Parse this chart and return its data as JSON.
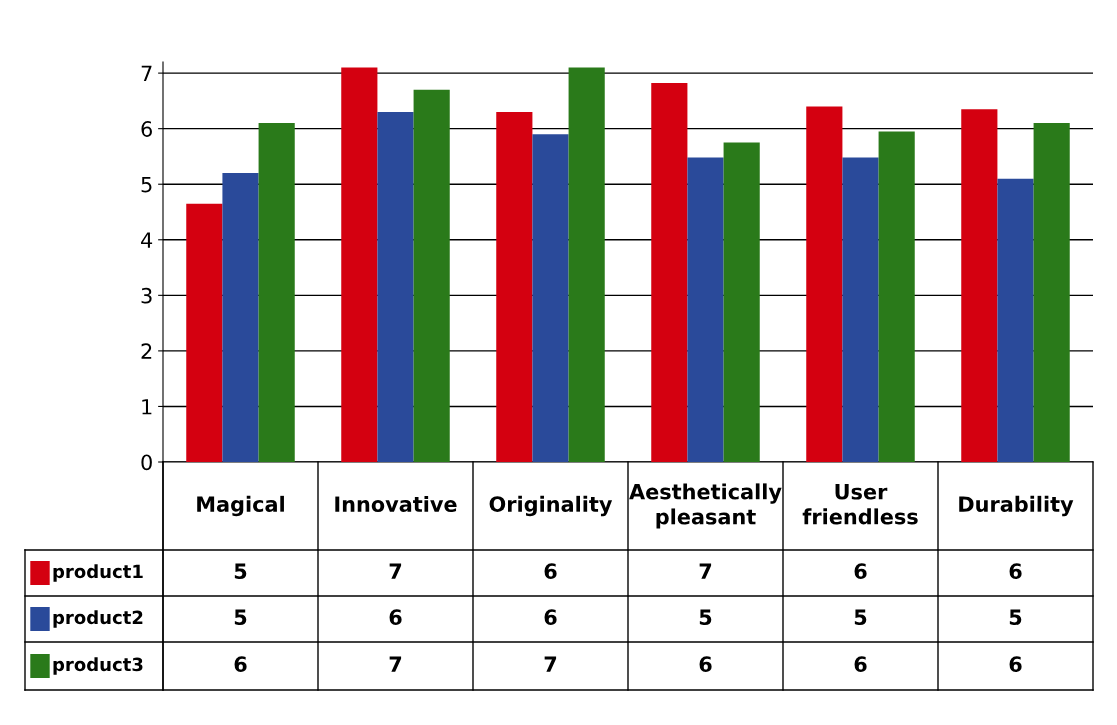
{
  "chart_data": {
    "type": "bar",
    "categories": [
      "Magical",
      "Innovative",
      "Originality",
      "Aesthetically\npleasant",
      "User\nfriendless",
      "Durability"
    ],
    "series": [
      {
        "name": "product1",
        "color": "#d40010",
        "values": [
          4.65,
          7.1,
          6.3,
          6.82,
          6.4,
          6.35
        ],
        "value_labels": [
          "5",
          "7",
          "6",
          "7",
          "6",
          "6"
        ]
      },
      {
        "name": "product2",
        "color": "#2a4a9a",
        "values": [
          5.2,
          6.3,
          5.9,
          5.48,
          5.48,
          5.1
        ],
        "value_labels": [
          "5",
          "6",
          "6",
          "5",
          "5",
          "5"
        ]
      },
      {
        "name": "product3",
        "color": "#2a7a1a",
        "values": [
          6.1,
          6.7,
          7.1,
          5.75,
          5.95,
          6.1
        ],
        "value_labels": [
          "6",
          "7",
          "7",
          "6",
          "6",
          "6"
        ]
      }
    ],
    "ylim": [
      0,
      7.2
    ],
    "yticks": [
      0,
      1,
      2,
      3,
      4,
      5,
      6,
      7
    ],
    "grid": "y",
    "legend": "bottom left"
  }
}
